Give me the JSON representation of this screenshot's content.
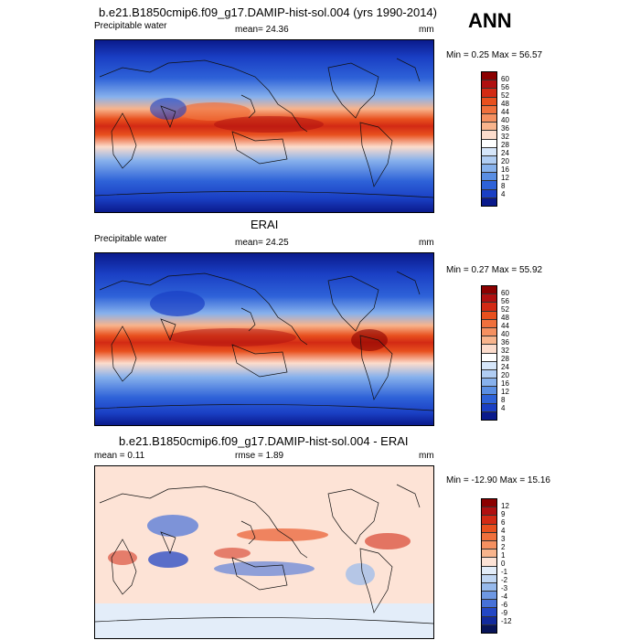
{
  "season": "ANN",
  "panels": [
    {
      "title": "b.e21.B1850cmip6.f09_g17.DAMIP-hist-sol.004 (yrs 1990-2014)",
      "left_label": "Precipitable water",
      "stat1": "mean=  24.36",
      "stat2": "",
      "units": "mm",
      "minmax": "Min =   0.25 Max =  56.57",
      "colorbar": {
        "labels": [
          "60",
          "56",
          "52",
          "48",
          "44",
          "40",
          "36",
          "32",
          "28",
          "24",
          "20",
          "16",
          "12",
          "8",
          "4"
        ],
        "colors": [
          "#8b0000",
          "#b01010",
          "#d22a14",
          "#e8501e",
          "#f0703c",
          "#f59060",
          "#f8b48c",
          "#fcdccc",
          "#ffffff",
          "#d6e6fa",
          "#b0cdf3",
          "#87b1ec",
          "#5a8ee3",
          "#2e62d8",
          "#1a3fc4",
          "#0a1a8c"
        ]
      }
    },
    {
      "title": "ERAI",
      "left_label": "Precipitable water",
      "stat1": "mean=  24.25",
      "stat2": "",
      "units": "mm",
      "minmax": "Min =   0.27 Max =  55.92",
      "colorbar": {
        "labels": [
          "60",
          "56",
          "52",
          "48",
          "44",
          "40",
          "36",
          "32",
          "28",
          "24",
          "20",
          "16",
          "12",
          "8",
          "4"
        ],
        "colors": [
          "#8b0000",
          "#b01010",
          "#d22a14",
          "#e8501e",
          "#f0703c",
          "#f59060",
          "#f8b48c",
          "#fcdccc",
          "#ffffff",
          "#d6e6fa",
          "#b0cdf3",
          "#87b1ec",
          "#5a8ee3",
          "#2e62d8",
          "#1a3fc4",
          "#0a1a8c"
        ]
      }
    },
    {
      "title": "b.e21.B1850cmip6.f09_g17.DAMIP-hist-sol.004 - ERAI",
      "left_label": "mean =   0.11",
      "stat1": "rmse =   1.89",
      "stat2": "",
      "units": "mm",
      "minmax": "Min = -12.90 Max =  15.16",
      "colorbar": {
        "labels": [
          "12",
          "9",
          "6",
          "4",
          "3",
          "2",
          "1",
          "0",
          "-1",
          "-2",
          "-3",
          "-4",
          "-6",
          "-9",
          "-12"
        ],
        "colors": [
          "#8b0000",
          "#b01010",
          "#d22a14",
          "#e8501e",
          "#f0703c",
          "#f59060",
          "#f8b48c",
          "#fde3d6",
          "#e3edf9",
          "#c0d6f3",
          "#96b9ec",
          "#6e98e3",
          "#4671d8",
          "#2347c4",
          "#122a9c",
          "#081458"
        ]
      }
    }
  ]
}
